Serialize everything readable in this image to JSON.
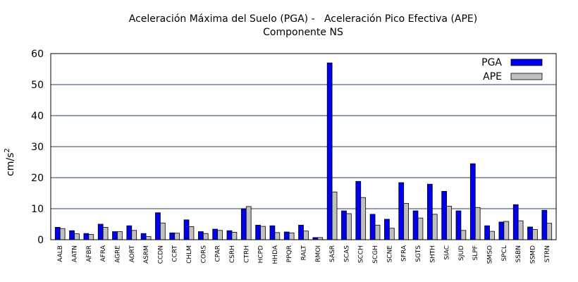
{
  "chart_data": {
    "type": "bar",
    "title": "Aceleración Máxima del Suelo (PGA) -   Aceleración Pico Efectiva (APE)",
    "subtitle": "Componente NS",
    "xlabel": "",
    "ylabel": "cm/s",
    "ylabel_superscript": "2",
    "ylim": [
      0,
      60
    ],
    "yticks": [
      "0",
      "10",
      "20",
      "30",
      "40",
      "50",
      "60"
    ],
    "grid": "horizontal",
    "legend_position": "top-right",
    "colors": {
      "PGA": "#0000ee",
      "APE": "#c0c0c0"
    },
    "categories": [
      "AALB",
      "AATN",
      "AFBR",
      "AFRA",
      "AGRE",
      "AORT",
      "ASRM",
      "CCDN",
      "CCRT",
      "CHLM",
      "CORS",
      "CPAR",
      "CSRH",
      "CTRH",
      "HCPD",
      "HHDA",
      "PPQR",
      "RALT",
      "RMOI",
      "SASR",
      "SCAS",
      "SCCH",
      "SCGH",
      "SCNE",
      "SFRA",
      "SGTS",
      "SHTH",
      "SIAC",
      "SJUD",
      "SLPF",
      "SMSO",
      "SPCL",
      "SSBN",
      "SSMD",
      "STRN"
    ],
    "series": [
      {
        "name": "PGA",
        "values": [
          4.0,
          2.9,
          2.0,
          5.0,
          2.6,
          4.5,
          2.0,
          8.7,
          2.2,
          6.4,
          2.6,
          3.4,
          2.9,
          10.0,
          4.7,
          4.5,
          2.5,
          4.7,
          0.7,
          57.0,
          9.3,
          18.8,
          8.2,
          6.6,
          18.4,
          9.3,
          17.9,
          15.6,
          9.3,
          24.5,
          4.5,
          5.7,
          11.3,
          4.1,
          9.5
        ]
      },
      {
        "name": "APE",
        "values": [
          3.6,
          1.9,
          1.7,
          4.0,
          2.6,
          3.0,
          1.0,
          5.4,
          2.1,
          4.2,
          2.0,
          3.0,
          2.4,
          10.7,
          4.3,
          2.3,
          2.2,
          2.8,
          0.7,
          15.4,
          8.4,
          13.6,
          4.7,
          3.7,
          11.7,
          7.0,
          8.2,
          10.8,
          3.0,
          10.4,
          2.7,
          5.9,
          6.1,
          3.3,
          5.3
        ]
      }
    ]
  }
}
